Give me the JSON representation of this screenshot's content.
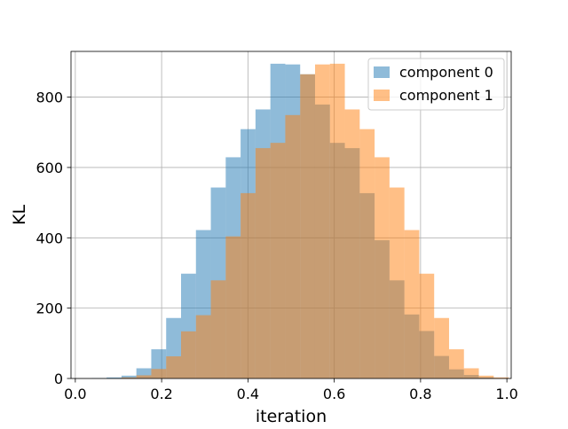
{
  "chart_data": {
    "type": "bar",
    "subtype": "overlapping-histogram",
    "title": "",
    "xlabel": "iteration",
    "ylabel": "KL",
    "xlim": [
      -0.01,
      1.01
    ],
    "ylim": [
      0,
      930
    ],
    "xticks": [
      0.0,
      0.2,
      0.4,
      0.6,
      0.8,
      1.0
    ],
    "xtick_labels": [
      "0.0",
      "0.2",
      "0.4",
      "0.6",
      "0.8",
      "1.0"
    ],
    "yticks": [
      0,
      200,
      400,
      600,
      800
    ],
    "ytick_labels": [
      "0",
      "200",
      "400",
      "600",
      "800"
    ],
    "grid": true,
    "legend_position": "top-right",
    "bin_width": 0.0345,
    "series": [
      {
        "name": "component 0",
        "color": "#1f77b4",
        "alpha": 0.5,
        "bin_start": 0.038,
        "values": [
          1,
          3,
          8,
          29,
          83,
          172,
          298,
          422,
          543,
          629,
          709,
          765,
          895,
          893,
          865,
          779,
          670,
          655,
          527,
          393,
          279,
          182,
          135,
          64,
          26,
          10,
          3,
          1
        ]
      },
      {
        "name": "component 1",
        "color": "#ff7f0e",
        "alpha": 0.5,
        "bin_start": 0.107,
        "values": [
          3,
          9,
          27,
          63,
          134,
          180,
          279,
          404,
          527,
          655,
          670,
          749,
          865,
          893,
          895,
          765,
          709,
          629,
          543,
          422,
          298,
          172,
          83,
          29,
          8,
          3
        ]
      }
    ]
  }
}
